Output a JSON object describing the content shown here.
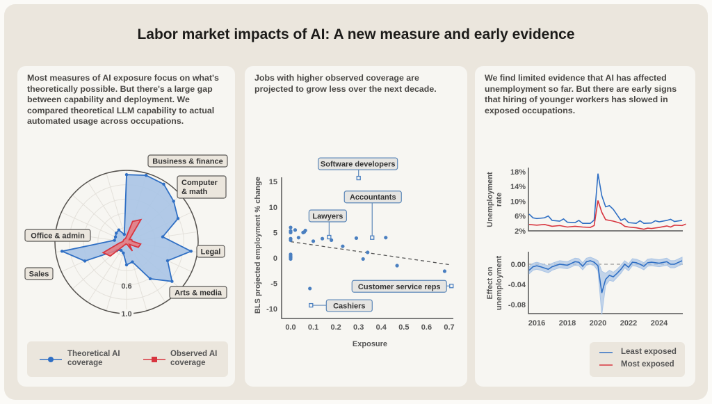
{
  "title": "Labor market impacts of AI: A new measure and early evidence",
  "panels": [
    {
      "text": "Most measures of AI exposure focus on what's theoretically possible. But there's a large gap between capability and deployment. We compared theoretical LLM capability to actual automated usage across occupations."
    },
    {
      "text": "Jobs with higher observed coverage are projected to grow less over the next decade."
    },
    {
      "text": "We find limited evidence that AI has affected unemployment so far. But there are early signs that hiring of younger workers has slowed in exposed occupations."
    }
  ],
  "colors": {
    "blue": "#2f6fc4",
    "red": "#d8353f",
    "blue_fill": "#a9c4e6",
    "red_fill": "#e9787c",
    "panel": "#f7f6f2",
    "frame": "#ebe6dd"
  },
  "chart_data": [
    {
      "type": "radar",
      "radial_ticks": [
        "0.6",
        "1.0"
      ],
      "rlim": [
        0,
        1
      ],
      "category_labels": [
        "Business & finance",
        "Computer & math",
        "Legal",
        "Arts & media",
        "Sales",
        "Office & admin"
      ],
      "series": [
        {
          "name": "Theoretical AI coverage",
          "values": [
            0.94,
            0.97,
            0.96,
            0.87,
            0.79,
            0.51,
            0.91,
            0.63,
            0.84,
            0.61,
            0.29,
            0.32,
            0.16,
            0.14,
            0.18,
            0.64,
            0.91,
            0.17,
            0.17,
            0.19,
            0.2,
            0.11
          ]
        },
        {
          "name": "Observed AI coverage",
          "values": [
            0.08,
            0.3,
            0.37,
            0.05,
            0.08,
            0.08,
            0.2,
            0.18,
            0.05,
            0.15,
            0.04,
            0.03,
            0.03,
            0.05,
            0.3,
            0.36,
            0.1,
            0.05,
            0.05,
            0.05,
            0.05,
            0.05
          ]
        }
      ],
      "legend": [
        {
          "label": "Theoretical AI coverage"
        },
        {
          "label": "Observed AI coverage"
        }
      ]
    },
    {
      "type": "scatter",
      "xlabel": "Exposure",
      "ylabel": "BLS projected employment % change",
      "xlim": [
        -0.03,
        0.72
      ],
      "ylim": [
        -11,
        16
      ],
      "xticks": [
        "0.0",
        "0.1",
        "0.2",
        "0.3",
        "0.4",
        "0.5",
        "0.6",
        "0.7"
      ],
      "yticks": [
        "15",
        "10",
        "5",
        "0",
        "-5",
        "-10"
      ],
      "points": [
        [
          0,
          6
        ],
        [
          0,
          5.3
        ],
        [
          0,
          5
        ],
        [
          0,
          3.8
        ],
        [
          0,
          3.5
        ],
        [
          0,
          0.7
        ],
        [
          0,
          0.4
        ],
        [
          0,
          0.1
        ],
        [
          0,
          -0.2
        ],
        [
          0.02,
          5.5
        ],
        [
          0.035,
          4
        ],
        [
          0.055,
          5
        ],
        [
          0.06,
          5.1
        ],
        [
          0.065,
          5.4
        ],
        [
          0.085,
          -6
        ],
        [
          0.1,
          3.3
        ],
        [
          0.14,
          3.8
        ],
        [
          0.18,
          3.5
        ],
        [
          0.23,
          2.3
        ],
        [
          0.29,
          3.9
        ],
        [
          0.32,
          -0.2
        ],
        [
          0.34,
          1.1
        ],
        [
          0.42,
          4
        ],
        [
          0.47,
          -1.5
        ],
        [
          0.68,
          -2.6
        ]
      ],
      "highlighted": [
        {
          "label": "Software developers",
          "x": 0.3,
          "y": 15.7
        },
        {
          "label": "Accountants",
          "x": 0.36,
          "y": 4
        },
        {
          "label": "Lawyers",
          "x": 0.17,
          "y": 4.1
        },
        {
          "label": "Customer service reps",
          "x": 0.71,
          "y": -5.5
        },
        {
          "label": "Cashiers",
          "x": 0.09,
          "y": -9.3
        }
      ],
      "trend": [
        [
          0,
          3.2
        ],
        [
          0.7,
          -1.3
        ]
      ]
    },
    {
      "type": "line",
      "ylabel": "Unemployment rate",
      "yticks": [
        "18%",
        "14%",
        "10%",
        "6%",
        "2%"
      ],
      "ylim": [
        2,
        18.5
      ],
      "xlim": [
        2015.5,
        2025.9
      ],
      "series": [
        {
          "name": "Least exposed",
          "points": [
            [
              2015.5,
              6.5
            ],
            [
              2015.75,
              5.5
            ],
            [
              2016,
              5.3
            ],
            [
              2016.5,
              5.5
            ],
            [
              2016.75,
              6
            ],
            [
              2017,
              4.8
            ],
            [
              2017.5,
              4.6
            ],
            [
              2017.75,
              5.2
            ],
            [
              2018,
              4.3
            ],
            [
              2018.5,
              4.2
            ],
            [
              2018.75,
              4.8
            ],
            [
              2019,
              4
            ],
            [
              2019.5,
              4
            ],
            [
              2019.75,
              4.9
            ],
            [
              2020,
              17.5
            ],
            [
              2020.25,
              11.5
            ],
            [
              2020.5,
              8.5
            ],
            [
              2020.75,
              8.8
            ],
            [
              2021,
              7.8
            ],
            [
              2021.5,
              4.8
            ],
            [
              2021.75,
              5.3
            ],
            [
              2022,
              4.2
            ],
            [
              2022.5,
              4
            ],
            [
              2022.75,
              4.7
            ],
            [
              2023,
              4
            ],
            [
              2023.5,
              4.1
            ],
            [
              2023.75,
              4.7
            ],
            [
              2024,
              4.4
            ],
            [
              2024.5,
              4.8
            ],
            [
              2024.75,
              5.1
            ],
            [
              2025,
              4.5
            ],
            [
              2025.5,
              4.8
            ]
          ]
        },
        {
          "name": "Most exposed",
          "points": [
            [
              2015.5,
              3.7
            ],
            [
              2016,
              3.5
            ],
            [
              2016.5,
              3.7
            ],
            [
              2017,
              3.2
            ],
            [
              2017.5,
              3.4
            ],
            [
              2018,
              3
            ],
            [
              2018.5,
              3.2
            ],
            [
              2019,
              3
            ],
            [
              2019.5,
              2.9
            ],
            [
              2019.75,
              3.4
            ],
            [
              2020,
              10.2
            ],
            [
              2020.25,
              7
            ],
            [
              2020.5,
              5
            ],
            [
              2021,
              4.6
            ],
            [
              2021.5,
              4
            ],
            [
              2021.75,
              3.2
            ],
            [
              2022,
              3
            ],
            [
              2022.5,
              2.8
            ],
            [
              2023,
              2.4
            ],
            [
              2023.25,
              2.7
            ],
            [
              2023.5,
              2.6
            ],
            [
              2024,
              2.9
            ],
            [
              2024.5,
              3.3
            ],
            [
              2024.75,
              3
            ],
            [
              2025,
              3.5
            ],
            [
              2025.5,
              3.4
            ],
            [
              2025.75,
              3.8
            ]
          ]
        }
      ]
    },
    {
      "type": "line",
      "ylabel": "Effect on unemployment",
      "yticks": [
        "0.00",
        "-0.04",
        "-0.08"
      ],
      "ylim": [
        -0.105,
        0.02
      ],
      "xlim": [
        2015.5,
        2025.9
      ],
      "xticks": [
        "2016",
        "2018",
        "2020",
        "2022",
        "2024"
      ],
      "series": [
        {
          "points_with_ci_halfwidth": [
            [
              2015.5,
              -0.012,
              0.007
            ],
            [
              2015.75,
              -0.005,
              0.007
            ],
            [
              2016,
              -0.003,
              0.007
            ],
            [
              2016.25,
              -0.005,
              0.007
            ],
            [
              2016.75,
              -0.01,
              0.007
            ],
            [
              2017,
              -0.005,
              0.007
            ],
            [
              2017.5,
              0,
              0.007
            ],
            [
              2018,
              -0.002,
              0.007
            ],
            [
              2018.5,
              0.005,
              0.007
            ],
            [
              2018.75,
              0.004,
              0.007
            ],
            [
              2019,
              -0.004,
              0.007
            ],
            [
              2019.25,
              0.005,
              0.007
            ],
            [
              2019.5,
              0.007,
              0.007
            ],
            [
              2019.75,
              0.004,
              0.007
            ],
            [
              2020,
              -0.003,
              0.01
            ],
            [
              2020.25,
              -0.057,
              0.043
            ],
            [
              2020.5,
              -0.03,
              0.012
            ],
            [
              2020.75,
              -0.022,
              0.01
            ],
            [
              2021,
              -0.025,
              0.009
            ],
            [
              2021.25,
              -0.018,
              0.008
            ],
            [
              2021.5,
              -0.01,
              0.008
            ],
            [
              2021.75,
              0,
              0.007
            ],
            [
              2022,
              -0.006,
              0.007
            ],
            [
              2022.25,
              0.004,
              0.007
            ],
            [
              2022.5,
              0.003,
              0.007
            ],
            [
              2022.75,
              0,
              0.007
            ],
            [
              2023,
              -0.004,
              0.007
            ],
            [
              2023.25,
              0.003,
              0.007
            ],
            [
              2023.5,
              0.004,
              0.007
            ],
            [
              2024,
              0.002,
              0.007
            ],
            [
              2024.5,
              0.005,
              0.007
            ],
            [
              2024.75,
              0,
              0.007
            ],
            [
              2025,
              0,
              0.007
            ],
            [
              2025.5,
              0.007,
              0.007
            ]
          ]
        }
      ],
      "reference_line": 0
    },
    {
      "type": "legend",
      "entries": [
        {
          "label": "Least exposed"
        },
        {
          "label": "Most exposed"
        }
      ]
    }
  ]
}
